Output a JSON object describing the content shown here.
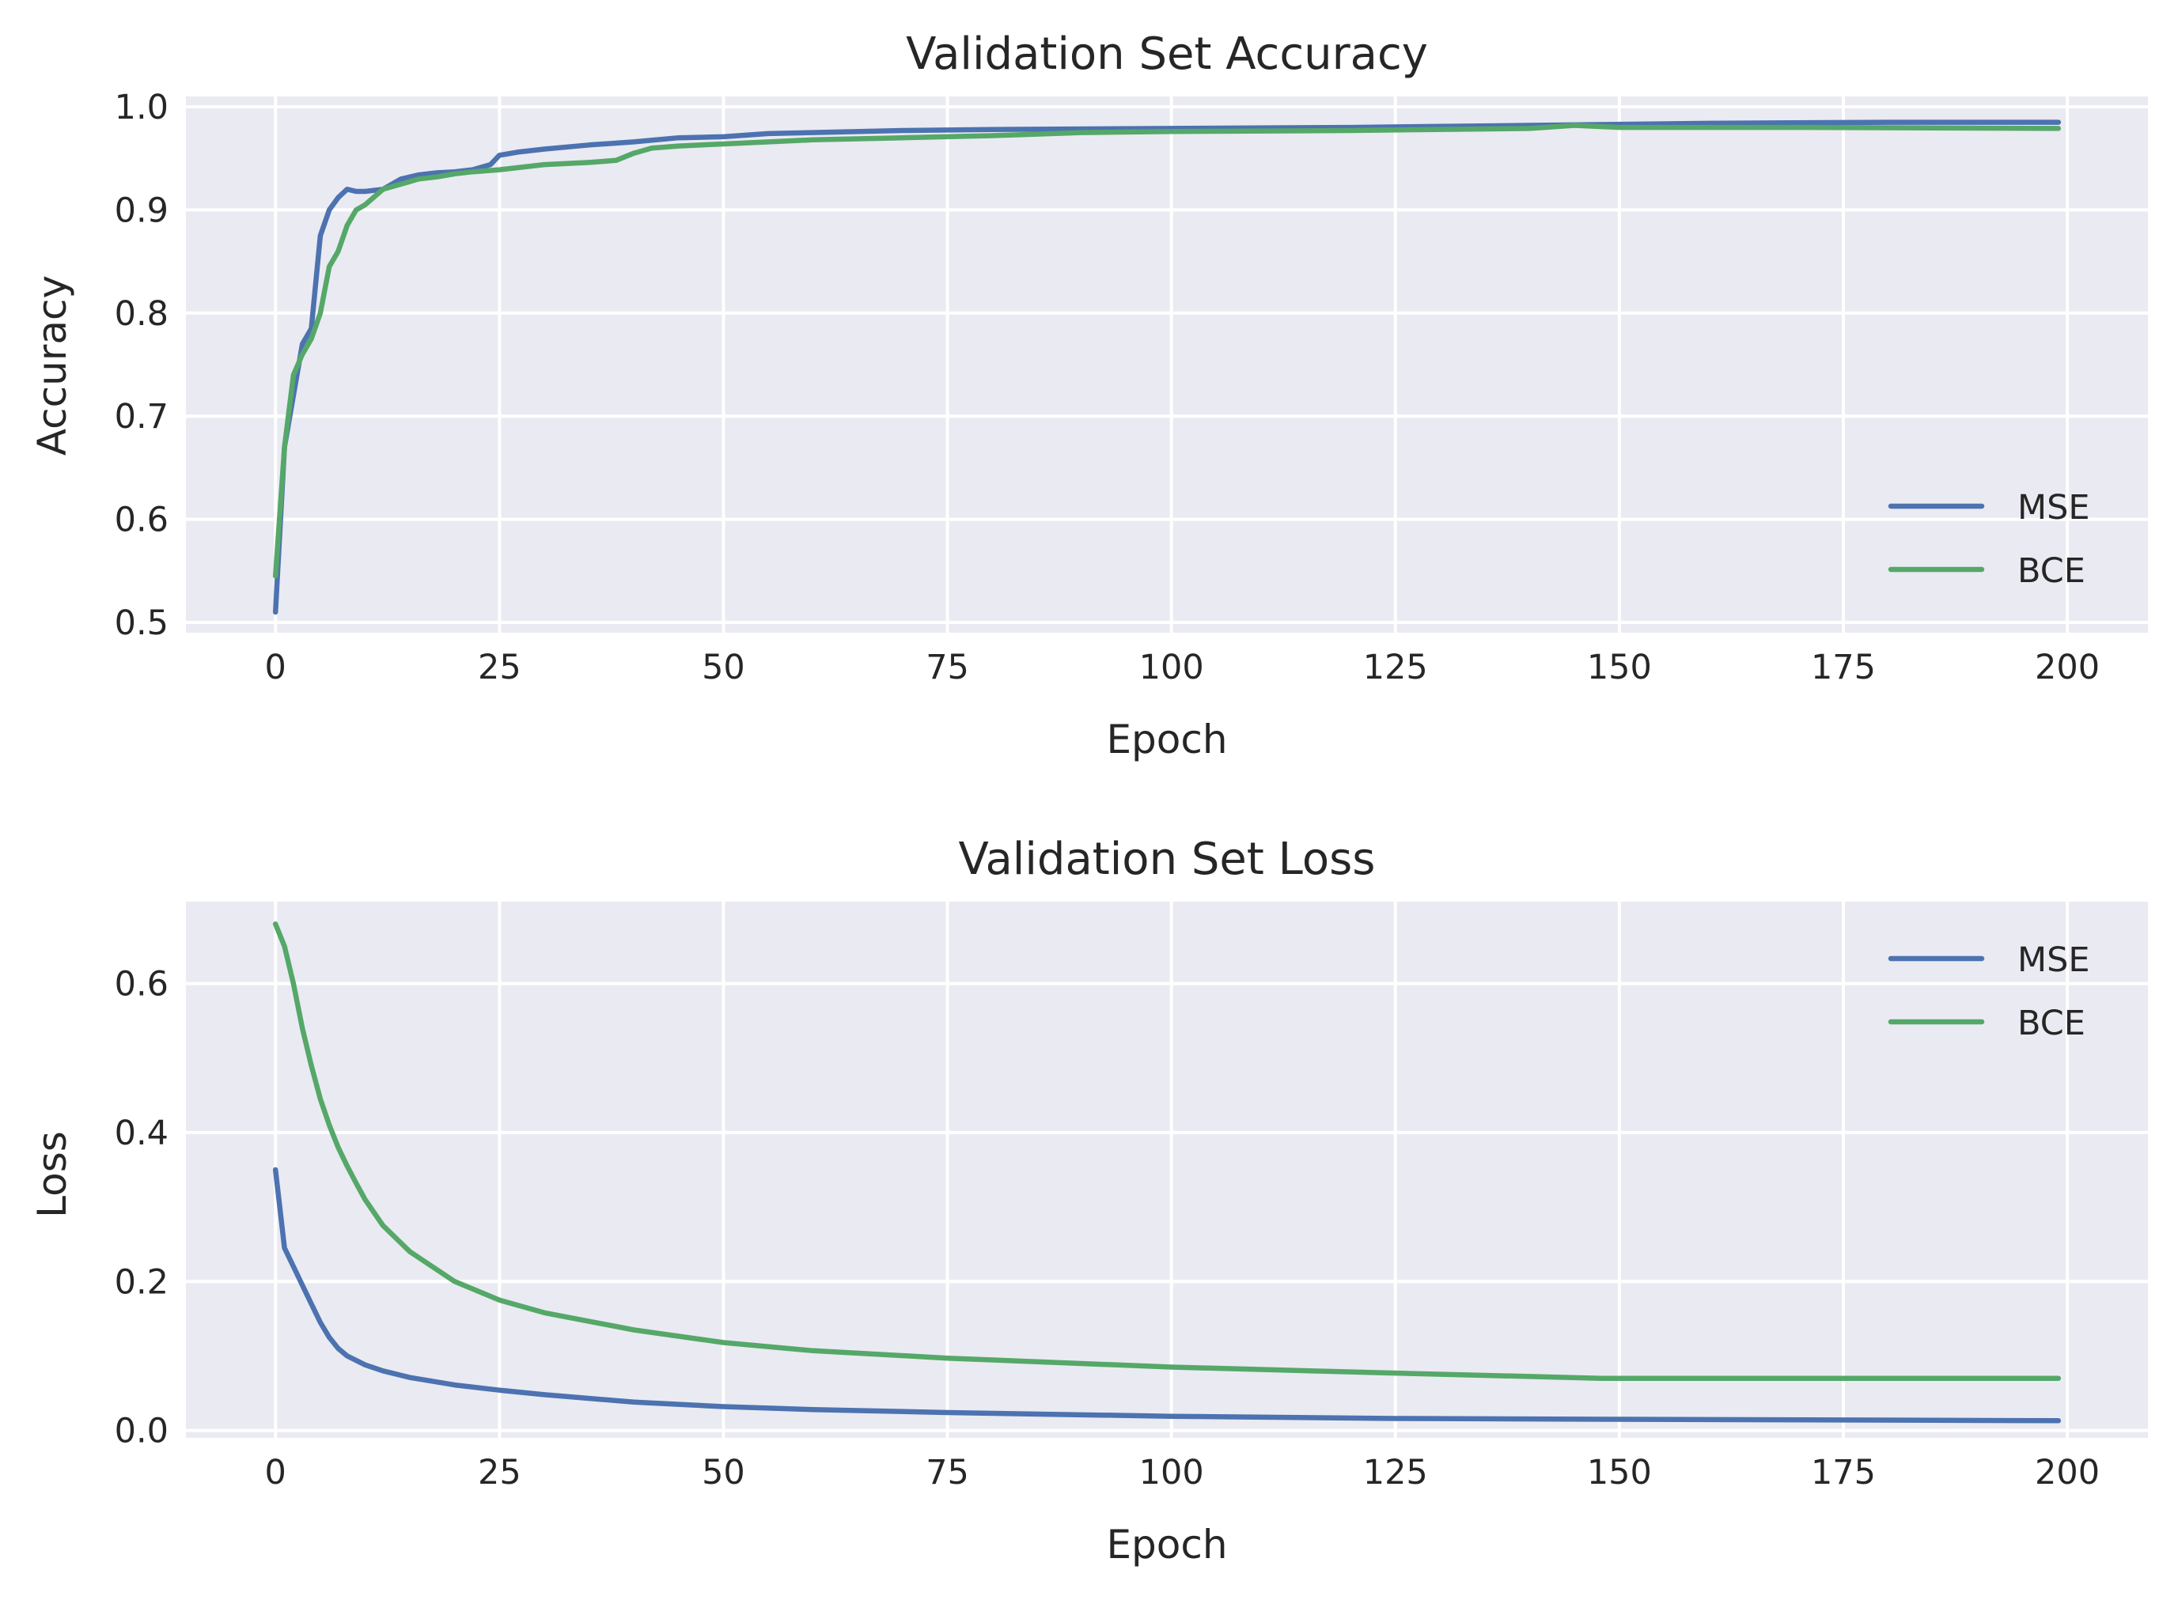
{
  "colors": {
    "mse": "#4c72b0",
    "bce": "#55a868",
    "plot_bg": "#eaeaf2",
    "grid": "#ffffff",
    "text": "#262626"
  },
  "chart_data": [
    {
      "type": "line",
      "title": "Validation Set Accuracy",
      "xlabel": "Epoch",
      "ylabel": "Accuracy",
      "xlim": [
        -10,
        209
      ],
      "ylim": [
        0.49,
        1.01
      ],
      "xticks": [
        0,
        25,
        50,
        75,
        100,
        125,
        150,
        175,
        200
      ],
      "yticks": [
        0.5,
        0.6,
        0.7,
        0.8,
        0.9,
        1.0
      ],
      "ytick_labels": [
        "0.5",
        "0.6",
        "0.7",
        "0.8",
        "0.9",
        "1.0"
      ],
      "grid": true,
      "legend": "lower right",
      "series": [
        {
          "name": "MSE",
          "color_key": "mse",
          "x": [
            0,
            1,
            2,
            3,
            4,
            5,
            6,
            7,
            8,
            9,
            10,
            12,
            14,
            16,
            18,
            20,
            22,
            24,
            25,
            27,
            30,
            35,
            40,
            45,
            50,
            55,
            60,
            70,
            80,
            100,
            120,
            140,
            160,
            180,
            199
          ],
          "y": [
            0.51,
            0.67,
            0.72,
            0.77,
            0.785,
            0.875,
            0.9,
            0.912,
            0.92,
            0.918,
            0.918,
            0.92,
            0.93,
            0.934,
            0.936,
            0.937,
            0.939,
            0.944,
            0.953,
            0.956,
            0.959,
            0.963,
            0.966,
            0.97,
            0.971,
            0.974,
            0.975,
            0.977,
            0.978,
            0.979,
            0.98,
            0.982,
            0.984,
            0.985,
            0.985
          ]
        },
        {
          "name": "BCE",
          "color_key": "bce",
          "x": [
            0,
            1,
            2,
            3,
            4,
            5,
            6,
            7,
            8,
            9,
            10,
            12,
            14,
            16,
            18,
            20,
            22,
            25,
            30,
            35,
            38,
            40,
            42,
            45,
            50,
            60,
            70,
            80,
            90,
            100,
            120,
            140,
            145,
            150,
            170,
            199
          ],
          "y": [
            0.545,
            0.67,
            0.74,
            0.76,
            0.775,
            0.8,
            0.845,
            0.86,
            0.885,
            0.9,
            0.905,
            0.92,
            0.925,
            0.93,
            0.932,
            0.935,
            0.937,
            0.939,
            0.944,
            0.946,
            0.948,
            0.955,
            0.96,
            0.962,
            0.964,
            0.968,
            0.97,
            0.972,
            0.975,
            0.976,
            0.977,
            0.979,
            0.982,
            0.98,
            0.98,
            0.979
          ]
        }
      ]
    },
    {
      "type": "line",
      "title": "Validation Set Loss",
      "xlabel": "Epoch",
      "ylabel": "Loss",
      "xlim": [
        -10,
        209
      ],
      "ylim": [
        -0.01,
        0.71
      ],
      "xticks": [
        0,
        25,
        50,
        75,
        100,
        125,
        150,
        175,
        200
      ],
      "yticks": [
        0.0,
        0.2,
        0.4,
        0.6
      ],
      "ytick_labels": [
        "0.0",
        "0.2",
        "0.4",
        "0.6"
      ],
      "grid": true,
      "legend": "upper right",
      "series": [
        {
          "name": "MSE",
          "color_key": "mse",
          "x": [
            0,
            1,
            2,
            3,
            4,
            5,
            6,
            7,
            8,
            10,
            12,
            15,
            20,
            25,
            30,
            40,
            50,
            60,
            75,
            100,
            125,
            150,
            175,
            199
          ],
          "y": [
            0.35,
            0.245,
            0.22,
            0.195,
            0.17,
            0.145,
            0.125,
            0.11,
            0.1,
            0.088,
            0.08,
            0.071,
            0.061,
            0.054,
            0.048,
            0.038,
            0.032,
            0.028,
            0.024,
            0.019,
            0.016,
            0.015,
            0.014,
            0.013
          ]
        },
        {
          "name": "BCE",
          "color_key": "bce",
          "x": [
            0,
            1,
            2,
            3,
            4,
            5,
            6,
            7,
            8,
            9,
            10,
            12,
            15,
            20,
            25,
            30,
            40,
            50,
            60,
            75,
            100,
            125,
            148,
            150,
            175,
            199
          ],
          "y": [
            0.68,
            0.65,
            0.6,
            0.54,
            0.49,
            0.445,
            0.41,
            0.38,
            0.355,
            0.332,
            0.31,
            0.275,
            0.24,
            0.2,
            0.175,
            0.158,
            0.135,
            0.118,
            0.107,
            0.097,
            0.085,
            0.077,
            0.07,
            0.07,
            0.07,
            0.07
          ]
        }
      ]
    }
  ]
}
